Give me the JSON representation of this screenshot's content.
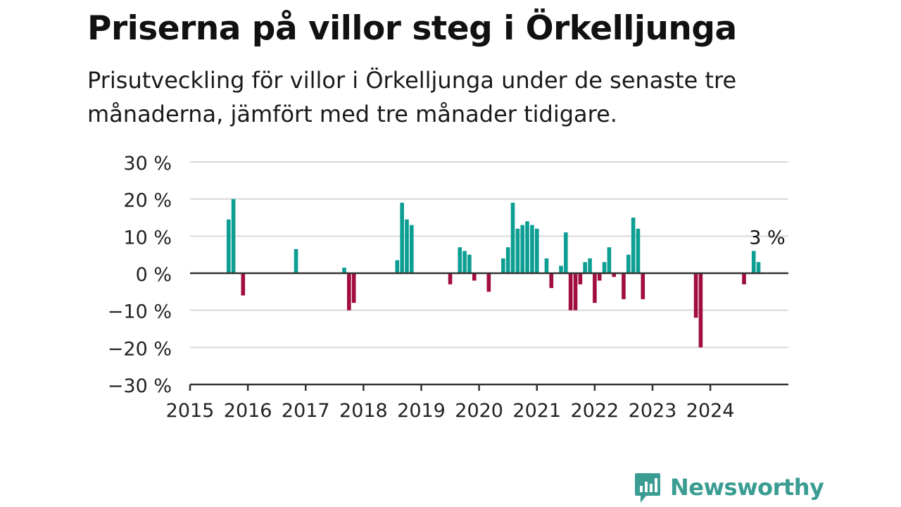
{
  "header": {
    "title": "Priserna på villor steg i Örkelljunga",
    "subtitle": "Prisutveckling för villor i Örkelljunga under de senaste tre månaderna, jämfört med tre månader tidigare."
  },
  "brand": {
    "name": "Newsworthy",
    "color": "#3a9c92"
  },
  "colors": {
    "positive": "#0d9e93",
    "negative": "#a10d40",
    "grid": "#d9d9d9",
    "axis": "#333333"
  },
  "chart_data": {
    "type": "bar",
    "ylim": [
      -30,
      30
    ],
    "y_ticks": [
      30,
      20,
      10,
      0,
      -10,
      -20,
      -30
    ],
    "y_tick_labels": [
      "30 %",
      "20 %",
      "10 %",
      "0 %",
      "−10 %",
      "−20 %",
      "−30 %"
    ],
    "x_tick_labels": [
      "2015",
      "2016",
      "2017",
      "2018",
      "2019",
      "2020",
      "2021",
      "2022",
      "2023",
      "2024"
    ],
    "xlim": [
      2015,
      2025.35
    ],
    "grid": true,
    "legend": "none",
    "annotation": {
      "text": "3 %",
      "x": 2024.96,
      "y": 6
    },
    "x": [
      2015.667,
      2015.75,
      2015.917,
      2016.833,
      2017.667,
      2017.75,
      2017.833,
      2018.583,
      2018.667,
      2018.75,
      2018.833,
      2019.5,
      2019.667,
      2019.75,
      2019.833,
      2019.917,
      2020.167,
      2020.417,
      2020.5,
      2020.583,
      2020.667,
      2020.75,
      2020.833,
      2020.917,
      2021.0,
      2021.167,
      2021.25,
      2021.417,
      2021.5,
      2021.583,
      2021.667,
      2021.75,
      2021.833,
      2021.917,
      2022.0,
      2022.083,
      2022.167,
      2022.25,
      2022.333,
      2022.5,
      2022.583,
      2022.667,
      2022.75,
      2022.833,
      2023.75,
      2023.833,
      2024.583,
      2024.75,
      2024.833
    ],
    "values": [
      14.5,
      20,
      -6,
      6.5,
      1.5,
      -10,
      -8,
      3.5,
      19,
      14.5,
      13,
      -3,
      7,
      6,
      5,
      -2,
      -5,
      4,
      7,
      19,
      12,
      13,
      14,
      13,
      12,
      4,
      -4,
      2,
      11,
      -10,
      -10,
      -3,
      3,
      4,
      -8,
      -2,
      3,
      7,
      -1,
      -7,
      5,
      15,
      12,
      -7,
      -12,
      -20,
      -3,
      6,
      3
    ]
  }
}
